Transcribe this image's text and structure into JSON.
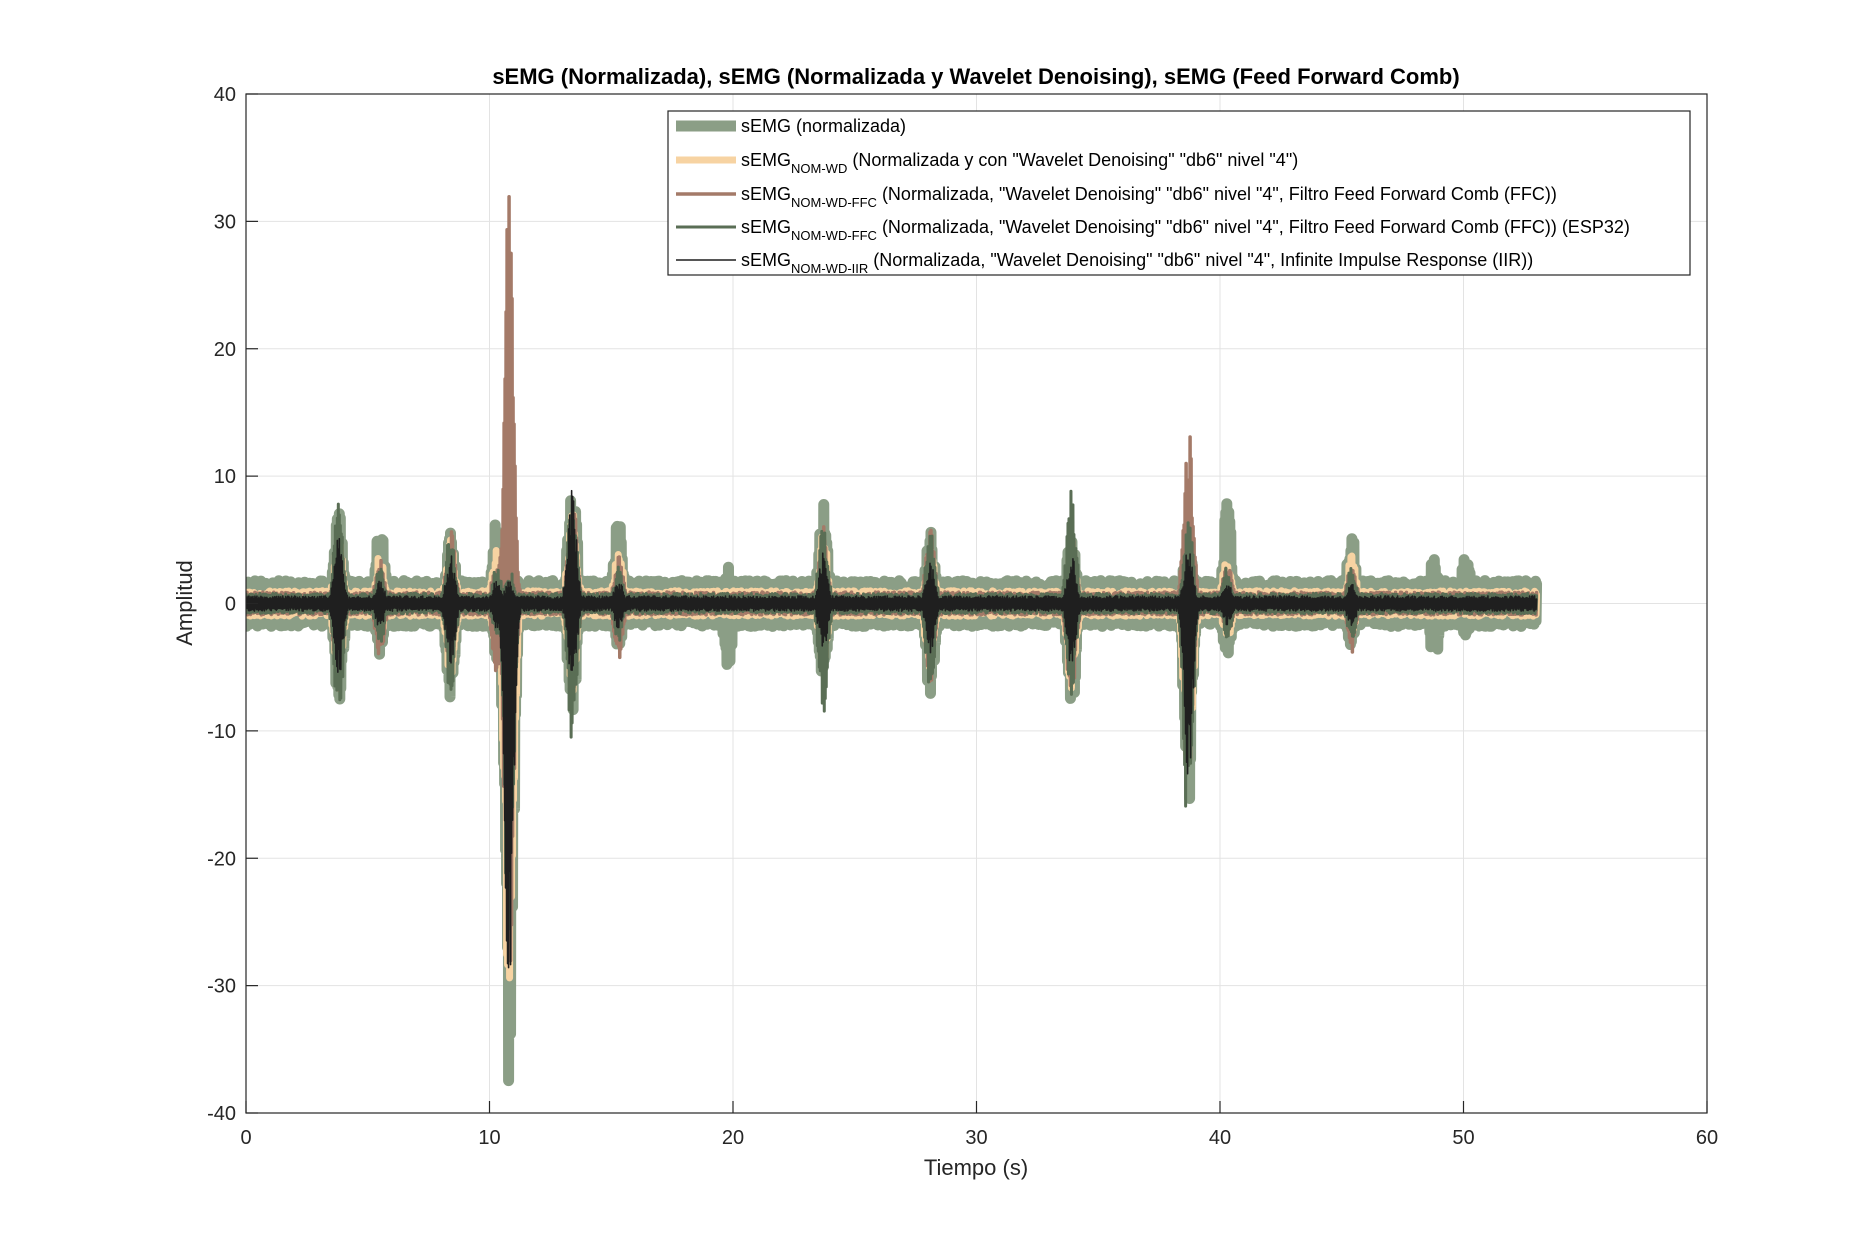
{
  "chart_data": {
    "type": "line",
    "title": "sEMG (Normalizada), sEMG (Normalizada y Wavelet Denoising), sEMG (Feed Forward Comb)",
    "xlabel": "Tiempo (s)",
    "ylabel": "Amplitud",
    "xlim": [
      0,
      60
    ],
    "ylim": [
      -40,
      40
    ],
    "xticks": [
      0,
      10,
      20,
      30,
      40,
      50,
      60
    ],
    "yticks": [
      -40,
      -30,
      -20,
      -10,
      0,
      10,
      20,
      30,
      40
    ],
    "grid": true,
    "legend_position": "top-right",
    "x_end": 53,
    "series": [
      {
        "name": "sEMG (normalizada)",
        "name_main": "sEMG",
        "name_sub": "",
        "name_rest": " (normalizada)",
        "color": "#8b9e86",
        "baseline_amplitude": 1.8,
        "bursts": [
          {
            "t": 3.8,
            "max": 7.5,
            "min": -8.0
          },
          {
            "t": 5.5,
            "max": 6.5,
            "min": -4.0
          },
          {
            "t": 8.4,
            "max": 6.0,
            "min": -7.5
          },
          {
            "t": 10.3,
            "max": 7.0,
            "min": -4.5
          },
          {
            "t": 10.8,
            "max": 4.0,
            "min": -39.0
          },
          {
            "t": 13.4,
            "max": 10.5,
            "min": -9.0
          },
          {
            "t": 15.3,
            "max": 7.0,
            "min": -3.5
          },
          {
            "t": 19.8,
            "max": 3.0,
            "min": -5.0
          },
          {
            "t": 23.7,
            "max": 8.0,
            "min": -6.5
          },
          {
            "t": 28.1,
            "max": 6.0,
            "min": -7.5
          },
          {
            "t": 33.9,
            "max": 6.0,
            "min": -9.0
          },
          {
            "t": 38.7,
            "max": 6.0,
            "min": -16.0
          },
          {
            "t": 40.3,
            "max": 8.0,
            "min": -4.5
          },
          {
            "t": 45.4,
            "max": 6.0,
            "min": -3.5
          },
          {
            "t": 48.8,
            "max": 4.0,
            "min": -5.0
          },
          {
            "t": 50.1,
            "max": 4.0,
            "min": -3.0
          }
        ]
      },
      {
        "name": "sEMG NOM-WD (Normalizada y con \"Wavelet Denoising\" \"db6\" nivel \"4\")",
        "name_main": "sEMG",
        "name_sub": "NOM-WD",
        "name_rest": " (Normalizada y con \"Wavelet Denoising\" \"db6\" nivel \"4\")",
        "color": "#f7d3a2",
        "baseline_amplitude": 1.0,
        "bursts": [
          {
            "t": 3.8,
            "max": 5.5,
            "min": -6.0
          },
          {
            "t": 5.5,
            "max": 4.0,
            "min": -3.0
          },
          {
            "t": 8.4,
            "max": 5.0,
            "min": -6.0
          },
          {
            "t": 10.3,
            "max": 4.5,
            "min": -3.5
          },
          {
            "t": 10.8,
            "max": 2.5,
            "min": -33.5
          },
          {
            "t": 13.4,
            "max": 8.5,
            "min": -7.0
          },
          {
            "t": 15.3,
            "max": 4.5,
            "min": -2.5
          },
          {
            "t": 23.7,
            "max": 6.0,
            "min": -5.0
          },
          {
            "t": 28.1,
            "max": 4.5,
            "min": -6.0
          },
          {
            "t": 33.9,
            "max": 5.0,
            "min": -7.0
          },
          {
            "t": 38.7,
            "max": 4.5,
            "min": -14.0
          },
          {
            "t": 40.3,
            "max": 4.0,
            "min": -3.0
          },
          {
            "t": 45.4,
            "max": 4.0,
            "min": -2.5
          }
        ]
      },
      {
        "name": "sEMG NOM-WD-FFC (Normalizada, \"Wavelet Denoising\" \"db6\" nivel \"4\", Filtro Feed Forward Comb (FFC))",
        "name_main": "sEMG",
        "name_sub": "NOM-WD-FFC",
        "name_rest": " (Normalizada, \"Wavelet Denoising\" \"db6\" nivel \"4\", Filtro Feed Forward Comb (FFC))",
        "color": "#a47a68",
        "baseline_amplitude": 0.9,
        "bursts": [
          {
            "t": 3.8,
            "max": 6.0,
            "min": -7.0
          },
          {
            "t": 5.5,
            "max": 3.5,
            "min": -4.5
          },
          {
            "t": 8.4,
            "max": 6.5,
            "min": -6.0
          },
          {
            "t": 10.3,
            "max": 4.0,
            "min": -6.0
          },
          {
            "t": 10.8,
            "max": 33.0,
            "min": -32.0
          },
          {
            "t": 13.4,
            "max": 9.0,
            "min": -8.0
          },
          {
            "t": 15.3,
            "max": 4.0,
            "min": -4.5
          },
          {
            "t": 23.7,
            "max": 6.5,
            "min": -5.5
          },
          {
            "t": 28.1,
            "max": 6.5,
            "min": -6.5
          },
          {
            "t": 33.9,
            "max": 7.0,
            "min": -8.0
          },
          {
            "t": 38.7,
            "max": 15.8,
            "min": -15.0
          },
          {
            "t": 40.3,
            "max": 3.5,
            "min": -3.0
          },
          {
            "t": 45.4,
            "max": 3.5,
            "min": -4.0
          }
        ]
      },
      {
        "name": "sEMG NOM-WD-FFC (Normalizada, \"Wavelet Denoising\" \"db6\" nivel \"4\", Filtro Feed Forward Comb (FFC)) (ESP32)",
        "name_main": "sEMG",
        "name_sub": "NOM-WD-FFC",
        "name_rest": " (Normalizada, \"Wavelet Denoising\" \"db6\" nivel \"4\", Filtro Feed Forward Comb (FFC)) (ESP32)",
        "color": "#5a6e55",
        "baseline_amplitude": 0.8,
        "bursts": [
          {
            "t": 3.8,
            "max": 8.5,
            "min": -9.8
          },
          {
            "t": 5.5,
            "max": 3.0,
            "min": -3.5
          },
          {
            "t": 8.4,
            "max": 6.0,
            "min": -7.8
          },
          {
            "t": 10.3,
            "max": 3.0,
            "min": -3.0
          },
          {
            "t": 10.8,
            "max": 3.0,
            "min": -29.0
          },
          {
            "t": 13.4,
            "max": 9.0,
            "min": -11.0
          },
          {
            "t": 15.3,
            "max": 3.0,
            "min": -3.0
          },
          {
            "t": 23.7,
            "max": 7.0,
            "min": -8.8
          },
          {
            "t": 28.1,
            "max": 6.0,
            "min": -7.0
          },
          {
            "t": 33.9,
            "max": 9.5,
            "min": -7.5
          },
          {
            "t": 38.7,
            "max": 7.0,
            "min": -19.5
          },
          {
            "t": 40.3,
            "max": 3.0,
            "min": -3.0
          },
          {
            "t": 45.4,
            "max": 3.0,
            "min": -3.0
          }
        ]
      },
      {
        "name": "sEMG NOM-WD-IIR (Normalizada, \"Wavelet Denoising\" \"db6\" nivel \"4\", Infinite Impulse Response (IIR))",
        "name_main": "sEMG",
        "name_sub": "NOM-WD-IIR",
        "name_rest": " (Normalizada, \"Wavelet Denoising\" \"db6\" nivel \"4\", Infinite Impulse Response (IIR))",
        "color": "#1f1f1f",
        "baseline_amplitude": 0.6,
        "bursts": [
          {
            "t": 3.8,
            "max": 5.5,
            "min": -6.0
          },
          {
            "t": 5.5,
            "max": 2.0,
            "min": -2.0
          },
          {
            "t": 8.4,
            "max": 4.0,
            "min": -5.0
          },
          {
            "t": 10.3,
            "max": 2.0,
            "min": -2.0
          },
          {
            "t": 10.8,
            "max": 2.0,
            "min": -32.0
          },
          {
            "t": 13.4,
            "max": 9.0,
            "min": -7.0
          },
          {
            "t": 15.3,
            "max": 2.0,
            "min": -2.0
          },
          {
            "t": 23.7,
            "max": 4.0,
            "min": -4.0
          },
          {
            "t": 28.1,
            "max": 3.5,
            "min": -4.0
          },
          {
            "t": 33.9,
            "max": 4.0,
            "min": -5.0
          },
          {
            "t": 38.7,
            "max": 4.5,
            "min": -14.0
          },
          {
            "t": 40.3,
            "max": 1.8,
            "min": -1.8
          },
          {
            "t": 45.4,
            "max": 2.0,
            "min": -2.0
          }
        ]
      }
    ]
  }
}
